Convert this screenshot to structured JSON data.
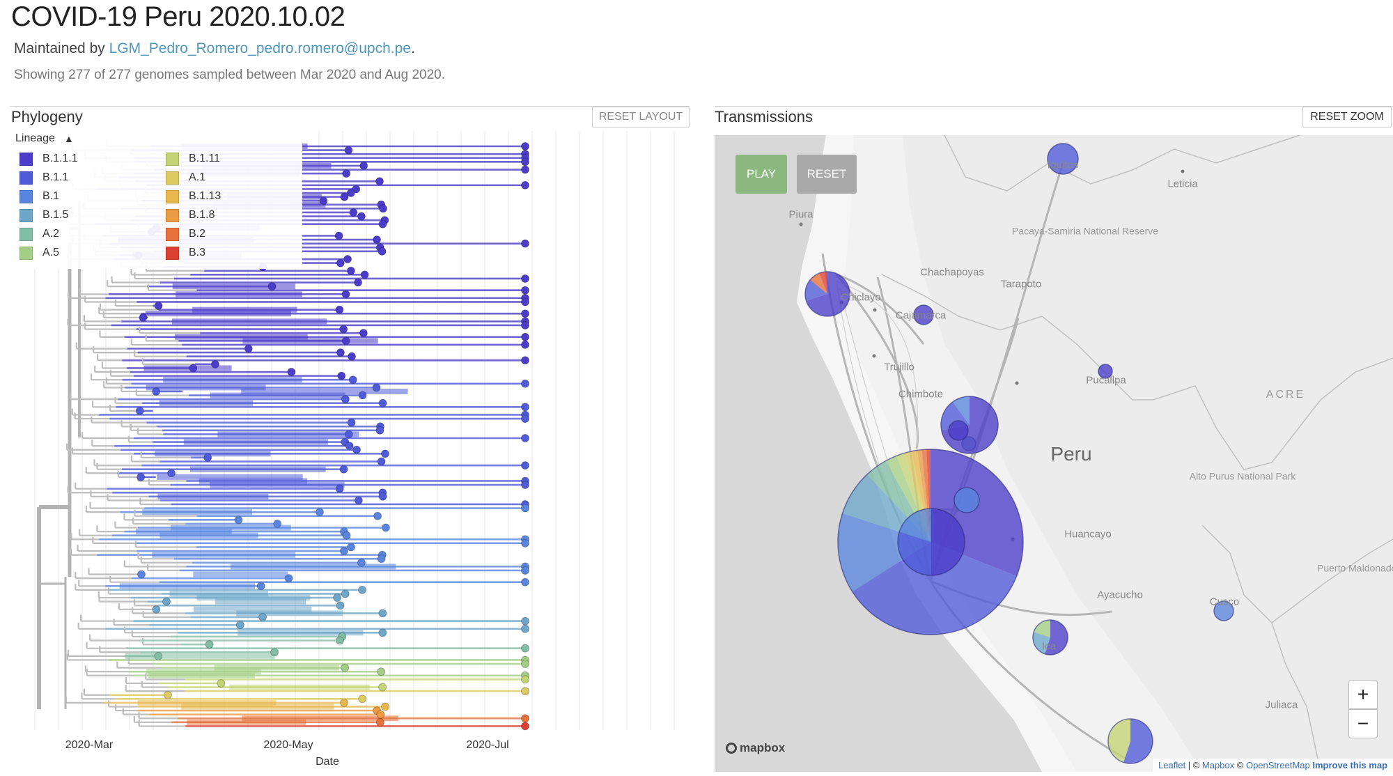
{
  "header": {
    "title": "COVID-19 Peru 2020.10.02",
    "maintained_prefix": "Maintained by ",
    "maintainer": "LGM_Pedro_Romero_pedro.romero@upch.pe",
    "maintained_suffix": ".",
    "summary": "Showing 277 of 277 genomes sampled between Mar 2020 and Aug 2020."
  },
  "phylogeny": {
    "title": "Phylogeny",
    "reset_layout_label": "RESET LAYOUT",
    "legend": {
      "title": "Lineage",
      "chevron_icon": "chevron-up-icon",
      "items": [
        {
          "label": "B.1.1.1",
          "color": "#4B3CC9"
        },
        {
          "label": "B.1.1",
          "color": "#4F5BD8"
        },
        {
          "label": "B.1",
          "color": "#5A85DE"
        },
        {
          "label": "B.1.5",
          "color": "#6DA6C9"
        },
        {
          "label": "A.2",
          "color": "#82BDA6"
        },
        {
          "label": "A.5",
          "color": "#A4CE85"
        },
        {
          "label": "B.1.11",
          "color": "#C4D474"
        },
        {
          "label": "A.1",
          "color": "#DDCB62"
        },
        {
          "label": "B.1.13",
          "color": "#E8B84F"
        },
        {
          "label": "B.1.8",
          "color": "#EC9B43"
        },
        {
          "label": "B.2",
          "color": "#E8703A"
        },
        {
          "label": "B.3",
          "color": "#DC3F32"
        }
      ]
    },
    "chart_data": {
      "type": "scatter",
      "xlabel": "Date",
      "x_ticks": [
        "2020-Mar",
        "2020-May",
        "2020-Jul"
      ],
      "grid": true,
      "color_by": "Lineage"
    }
  },
  "transmissions": {
    "title": "Transmissions",
    "reset_zoom_label": "RESET ZOOM",
    "play_label": "PLAY",
    "reset_label": "RESET",
    "zoom_in_label": "+",
    "zoom_out_label": "−",
    "logo": "mapbox",
    "attribution": {
      "leaflet": "Leaflet",
      "sep": " | © ",
      "mapbox": "Mapbox",
      "sep2": " © ",
      "osm": "OpenStreetMap",
      "improve": "Improve this map"
    },
    "places": {
      "iquitos": "Iquitos",
      "leticia": "Leticia",
      "piura": "Piura",
      "pacaya": "Pacaya-Samiria National Reserve",
      "chachapoyas": "Chachapoyas",
      "tarapoto": "Tarapoto",
      "chiclayo": "Chiclayo",
      "cajamarca": "Cajamarca",
      "trujillo": "Trujillo",
      "chimbote": "Chimbote",
      "pucallpa": "Pucallpa",
      "acre": "ACRE",
      "peru": "Peru",
      "alto_purus": "Alto Purus National Park",
      "huancayo": "Huancayo",
      "ayacucho": "Ayacucho",
      "cusco": "Cusco",
      "puerto": "Puerto Maldonado",
      "ica": "Ica",
      "juliaca": "Juliaca"
    }
  }
}
